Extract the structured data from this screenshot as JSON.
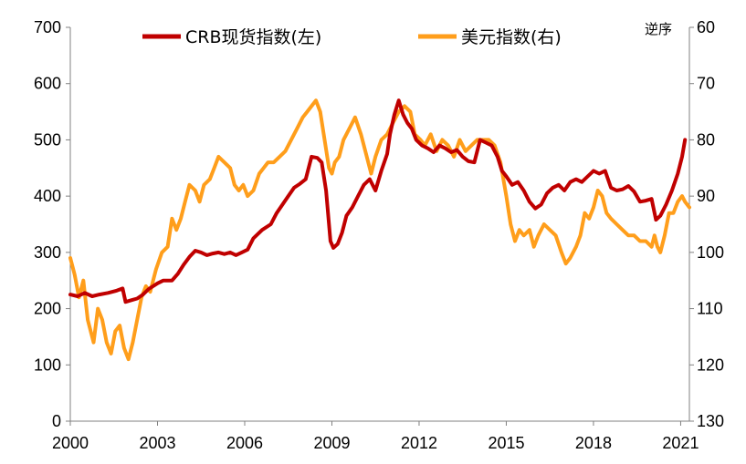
{
  "chart_data": {
    "type": "line",
    "legend_placement": "top",
    "grid": false,
    "x_axis": {
      "range": [
        2000,
        2021.3
      ],
      "ticks": [
        "2000",
        "2003",
        "2006",
        "2009",
        "2012",
        "2015",
        "2018",
        "2021"
      ]
    },
    "y_left": {
      "range": [
        0,
        700
      ],
      "ticks": [
        "0",
        "100",
        "200",
        "300",
        "400",
        "500",
        "600",
        "700"
      ]
    },
    "y_right": {
      "range": [
        60,
        130
      ],
      "reversed": true,
      "unit_label": "逆序",
      "ticks": [
        "60",
        "70",
        "80",
        "90",
        "100",
        "110",
        "120",
        "130"
      ]
    },
    "series": [
      {
        "name": "CRB现货指数(左)",
        "axis": "left",
        "color": "#C00000",
        "points": [
          [
            2000.0,
            225
          ],
          [
            2000.25,
            222
          ],
          [
            2000.5,
            228
          ],
          [
            2000.75,
            222
          ],
          [
            2001.0,
            225
          ],
          [
            2001.3,
            228
          ],
          [
            2001.6,
            232
          ],
          [
            2001.8,
            236
          ],
          [
            2001.9,
            212
          ],
          [
            2002.1,
            215
          ],
          [
            2002.3,
            218
          ],
          [
            2002.5,
            225
          ],
          [
            2002.7,
            235
          ],
          [
            2003.0,
            245
          ],
          [
            2003.2,
            250
          ],
          [
            2003.5,
            250
          ],
          [
            2003.7,
            262
          ],
          [
            2003.9,
            278
          ],
          [
            2004.1,
            292
          ],
          [
            2004.3,
            303
          ],
          [
            2004.5,
            300
          ],
          [
            2004.7,
            295
          ],
          [
            2004.9,
            298
          ],
          [
            2005.1,
            300
          ],
          [
            2005.3,
            297
          ],
          [
            2005.5,
            300
          ],
          [
            2005.7,
            295
          ],
          [
            2005.9,
            300
          ],
          [
            2006.1,
            305
          ],
          [
            2006.3,
            325
          ],
          [
            2006.6,
            340
          ],
          [
            2006.9,
            350
          ],
          [
            2007.1,
            370
          ],
          [
            2007.3,
            385
          ],
          [
            2007.5,
            400
          ],
          [
            2007.7,
            415
          ],
          [
            2007.9,
            422
          ],
          [
            2008.1,
            430
          ],
          [
            2008.3,
            470
          ],
          [
            2008.5,
            468
          ],
          [
            2008.65,
            460
          ],
          [
            2008.8,
            410
          ],
          [
            2008.95,
            320
          ],
          [
            2009.05,
            308
          ],
          [
            2009.2,
            315
          ],
          [
            2009.35,
            335
          ],
          [
            2009.5,
            365
          ],
          [
            2009.7,
            380
          ],
          [
            2009.9,
            400
          ],
          [
            2010.1,
            420
          ],
          [
            2010.3,
            430
          ],
          [
            2010.5,
            410
          ],
          [
            2010.7,
            445
          ],
          [
            2010.9,
            475
          ],
          [
            2011.0,
            510
          ],
          [
            2011.15,
            545
          ],
          [
            2011.3,
            570
          ],
          [
            2011.45,
            545
          ],
          [
            2011.6,
            530
          ],
          [
            2011.75,
            520
          ],
          [
            2011.9,
            500
          ],
          [
            2012.1,
            490
          ],
          [
            2012.3,
            485
          ],
          [
            2012.5,
            478
          ],
          [
            2012.7,
            490
          ],
          [
            2012.9,
            485
          ],
          [
            2013.1,
            478
          ],
          [
            2013.3,
            482
          ],
          [
            2013.5,
            470
          ],
          [
            2013.7,
            462
          ],
          [
            2013.9,
            460
          ],
          [
            2014.1,
            500
          ],
          [
            2014.3,
            495
          ],
          [
            2014.5,
            490
          ],
          [
            2014.7,
            470
          ],
          [
            2014.85,
            445
          ],
          [
            2015.0,
            435
          ],
          [
            2015.2,
            420
          ],
          [
            2015.4,
            425
          ],
          [
            2015.6,
            410
          ],
          [
            2015.8,
            390
          ],
          [
            2016.0,
            378
          ],
          [
            2016.2,
            385
          ],
          [
            2016.4,
            405
          ],
          [
            2016.6,
            415
          ],
          [
            2016.8,
            420
          ],
          [
            2017.0,
            410
          ],
          [
            2017.2,
            425
          ],
          [
            2017.4,
            430
          ],
          [
            2017.6,
            425
          ],
          [
            2017.8,
            435
          ],
          [
            2018.0,
            445
          ],
          [
            2018.2,
            440
          ],
          [
            2018.4,
            445
          ],
          [
            2018.6,
            415
          ],
          [
            2018.8,
            410
          ],
          [
            2019.0,
            412
          ],
          [
            2019.2,
            418
          ],
          [
            2019.4,
            408
          ],
          [
            2019.6,
            390
          ],
          [
            2019.8,
            392
          ],
          [
            2020.0,
            395
          ],
          [
            2020.15,
            358
          ],
          [
            2020.3,
            365
          ],
          [
            2020.5,
            385
          ],
          [
            2020.7,
            410
          ],
          [
            2020.9,
            440
          ],
          [
            2021.05,
            470
          ],
          [
            2021.15,
            500
          ]
        ]
      },
      {
        "name": "美元指数(右)",
        "axis": "right",
        "color": "#FF9E1B",
        "points": [
          [
            2000.0,
            101
          ],
          [
            2000.15,
            104
          ],
          [
            2000.3,
            108
          ],
          [
            2000.45,
            105
          ],
          [
            2000.6,
            112
          ],
          [
            2000.8,
            116
          ],
          [
            2000.95,
            110
          ],
          [
            2001.1,
            112
          ],
          [
            2001.25,
            116
          ],
          [
            2001.4,
            118
          ],
          [
            2001.55,
            114
          ],
          [
            2001.7,
            113
          ],
          [
            2001.85,
            117
          ],
          [
            2002.0,
            119
          ],
          [
            2002.15,
            116
          ],
          [
            2002.3,
            112
          ],
          [
            2002.45,
            108
          ],
          [
            2002.6,
            106
          ],
          [
            2002.75,
            107
          ],
          [
            2002.95,
            103
          ],
          [
            2003.15,
            100
          ],
          [
            2003.35,
            99
          ],
          [
            2003.5,
            94
          ],
          [
            2003.65,
            96
          ],
          [
            2003.8,
            94
          ],
          [
            2003.95,
            91
          ],
          [
            2004.1,
            88
          ],
          [
            2004.3,
            89
          ],
          [
            2004.45,
            91
          ],
          [
            2004.6,
            88
          ],
          [
            2004.8,
            87
          ],
          [
            2004.95,
            85
          ],
          [
            2005.1,
            83
          ],
          [
            2005.3,
            84
          ],
          [
            2005.5,
            85
          ],
          [
            2005.65,
            88
          ],
          [
            2005.8,
            89
          ],
          [
            2005.95,
            88
          ],
          [
            2006.1,
            90
          ],
          [
            2006.3,
            89
          ],
          [
            2006.5,
            86
          ],
          [
            2006.65,
            85
          ],
          [
            2006.8,
            84
          ],
          [
            2007.0,
            84
          ],
          [
            2007.2,
            83
          ],
          [
            2007.4,
            82
          ],
          [
            2007.6,
            80
          ],
          [
            2007.8,
            78
          ],
          [
            2008.0,
            76
          ],
          [
            2008.15,
            75
          ],
          [
            2008.3,
            74
          ],
          [
            2008.45,
            73
          ],
          [
            2008.6,
            75
          ],
          [
            2008.75,
            80
          ],
          [
            2008.9,
            85
          ],
          [
            2009.0,
            86
          ],
          [
            2009.1,
            84
          ],
          [
            2009.25,
            83
          ],
          [
            2009.4,
            80
          ],
          [
            2009.6,
            78
          ],
          [
            2009.8,
            76
          ],
          [
            2010.0,
            79
          ],
          [
            2010.15,
            82
          ],
          [
            2010.35,
            86
          ],
          [
            2010.5,
            83
          ],
          [
            2010.7,
            80
          ],
          [
            2010.9,
            79
          ],
          [
            2011.1,
            77
          ],
          [
            2011.3,
            75
          ],
          [
            2011.5,
            74
          ],
          [
            2011.7,
            75
          ],
          [
            2011.85,
            79
          ],
          [
            2012.05,
            80
          ],
          [
            2012.2,
            81
          ],
          [
            2012.4,
            79
          ],
          [
            2012.6,
            82
          ],
          [
            2012.8,
            80
          ],
          [
            2013.0,
            81
          ],
          [
            2013.2,
            83
          ],
          [
            2013.4,
            80
          ],
          [
            2013.6,
            82
          ],
          [
            2013.8,
            81
          ],
          [
            2014.0,
            80
          ],
          [
            2014.2,
            80
          ],
          [
            2014.4,
            80
          ],
          [
            2014.6,
            81
          ],
          [
            2014.8,
            84
          ],
          [
            2015.0,
            90
          ],
          [
            2015.15,
            95
          ],
          [
            2015.3,
            98
          ],
          [
            2015.45,
            96
          ],
          [
            2015.6,
            97
          ],
          [
            2015.8,
            96
          ],
          [
            2015.95,
            99
          ],
          [
            2016.1,
            97
          ],
          [
            2016.3,
            95
          ],
          [
            2016.5,
            96
          ],
          [
            2016.7,
            97
          ],
          [
            2016.9,
            100
          ],
          [
            2017.05,
            102
          ],
          [
            2017.2,
            101
          ],
          [
            2017.4,
            99
          ],
          [
            2017.55,
            97
          ],
          [
            2017.7,
            93
          ],
          [
            2017.85,
            94
          ],
          [
            2018.0,
            92
          ],
          [
            2018.15,
            89
          ],
          [
            2018.3,
            90
          ],
          [
            2018.45,
            93
          ],
          [
            2018.6,
            94
          ],
          [
            2018.8,
            95
          ],
          [
            2019.0,
            96
          ],
          [
            2019.2,
            97
          ],
          [
            2019.4,
            97
          ],
          [
            2019.6,
            98
          ],
          [
            2019.8,
            98
          ],
          [
            2020.0,
            99
          ],
          [
            2020.1,
            97
          ],
          [
            2020.2,
            99
          ],
          [
            2020.3,
            100
          ],
          [
            2020.45,
            97
          ],
          [
            2020.6,
            93
          ],
          [
            2020.75,
            93
          ],
          [
            2020.9,
            91
          ],
          [
            2021.05,
            90
          ],
          [
            2021.15,
            91
          ],
          [
            2021.3,
            92
          ]
        ]
      }
    ]
  }
}
